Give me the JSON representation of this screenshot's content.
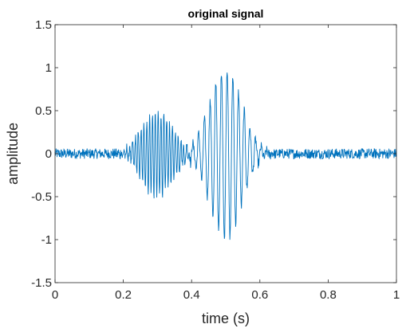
{
  "chart_data": {
    "type": "line",
    "title": "original signal",
    "xlabel": "time (s)",
    "ylabel": "amplitude",
    "xlim": [
      0,
      1
    ],
    "ylim": [
      -1.5,
      1.5
    ],
    "xticks": [
      0,
      0.2,
      0.4,
      0.6,
      0.8,
      1
    ],
    "xtick_labels": [
      "0",
      "0.2",
      "0.4",
      "0.6",
      "0.8",
      "1"
    ],
    "yticks": [
      -1.5,
      -1,
      -0.5,
      0,
      0.5,
      1,
      1.5
    ],
    "ytick_labels": [
      "-1.5",
      "-1",
      "-0.5",
      "0",
      "0.5",
      "1",
      "1.5"
    ],
    "grid": false,
    "line_color": "#0072BD",
    "series": [
      {
        "sample_count": 1000,
        "components": [
          {
            "center_time": 0.3,
            "peak_amplitude": 0.5,
            "frequency_hz": 120
          },
          {
            "center_time": 0.5,
            "peak_amplitude": 1.0,
            "frequency_hz": 60
          }
        ],
        "noise_amplitude": 0.06
      }
    ]
  }
}
